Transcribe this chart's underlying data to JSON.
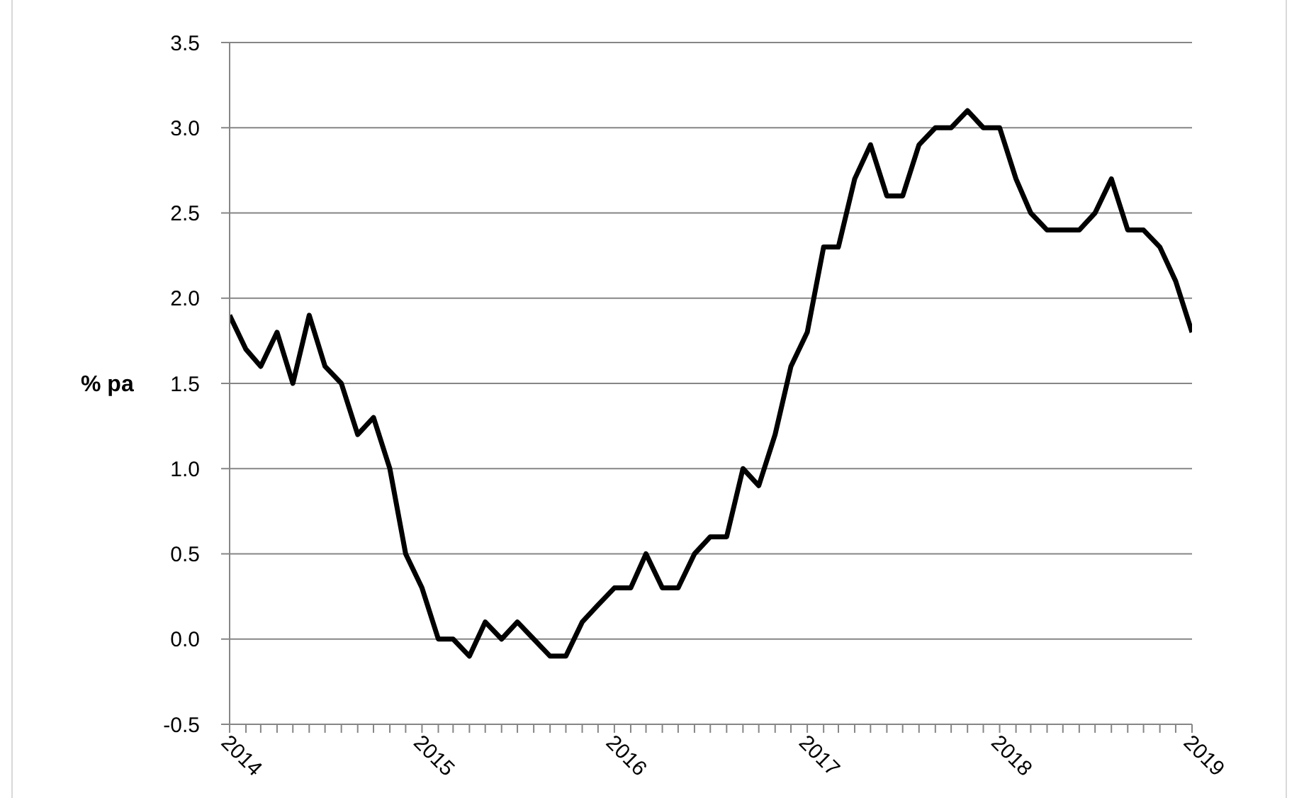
{
  "chart_data": {
    "type": "line",
    "ylabel": "% pa",
    "x": [
      "2014-01",
      "2014-02",
      "2014-03",
      "2014-04",
      "2014-05",
      "2014-06",
      "2014-07",
      "2014-08",
      "2014-09",
      "2014-10",
      "2014-11",
      "2014-12",
      "2015-01",
      "2015-02",
      "2015-03",
      "2015-04",
      "2015-05",
      "2015-06",
      "2015-07",
      "2015-08",
      "2015-09",
      "2015-10",
      "2015-11",
      "2015-12",
      "2016-01",
      "2016-02",
      "2016-03",
      "2016-04",
      "2016-05",
      "2016-06",
      "2016-07",
      "2016-08",
      "2016-09",
      "2016-10",
      "2016-11",
      "2016-12",
      "2017-01",
      "2017-02",
      "2017-03",
      "2017-04",
      "2017-05",
      "2017-06",
      "2017-07",
      "2017-08",
      "2017-09",
      "2017-10",
      "2017-11",
      "2017-12",
      "2018-01",
      "2018-02",
      "2018-03",
      "2018-04",
      "2018-05",
      "2018-06",
      "2018-07",
      "2018-08",
      "2018-09",
      "2018-10",
      "2018-11",
      "2018-12",
      "2019-01"
    ],
    "values": [
      1.9,
      1.7,
      1.6,
      1.8,
      1.5,
      1.9,
      1.6,
      1.5,
      1.2,
      1.3,
      1.0,
      0.5,
      0.3,
      0.0,
      0.0,
      -0.1,
      0.1,
      0.0,
      0.1,
      0.0,
      -0.1,
      -0.1,
      0.1,
      0.2,
      0.3,
      0.3,
      0.5,
      0.3,
      0.3,
      0.5,
      0.6,
      0.6,
      1.0,
      0.9,
      1.2,
      1.6,
      1.8,
      2.3,
      2.3,
      2.7,
      2.9,
      2.6,
      2.6,
      2.9,
      3.0,
      3.0,
      3.1,
      3.0,
      3.0,
      2.7,
      2.5,
      2.4,
      2.4,
      2.4,
      2.5,
      2.7,
      2.4,
      2.4,
      2.3,
      2.1,
      1.8
    ],
    "color": "#000000",
    "xlim": [
      "2014-01",
      "2019-01"
    ],
    "xticks": [
      "2014",
      {
        "value": "2014-02",
        "label": null
      },
      {
        "value": "2014-03",
        "label": null
      },
      {
        "value": "2014-04",
        "label": null
      },
      {
        "value": "2014-05",
        "label": null
      },
      {
        "value": "2014-06",
        "label": null
      },
      {
        "value": "2014-07",
        "label": null
      },
      {
        "value": "2014-08",
        "label": null
      },
      {
        "value": "2014-09",
        "label": null
      },
      {
        "value": "2014-10",
        "label": null
      },
      {
        "value": "2014-11",
        "label": null
      },
      {
        "value": "2014-12",
        "label": null
      },
      "2015",
      {
        "value": "2015-02",
        "label": null
      },
      {
        "value": "2015-03",
        "label": null
      },
      {
        "value": "2015-04",
        "label": null
      },
      {
        "value": "2015-05",
        "label": null
      },
      {
        "value": "2015-06",
        "label": null
      },
      {
        "value": "2015-07",
        "label": null
      },
      {
        "value": "2015-08",
        "label": null
      },
      {
        "value": "2015-09",
        "label": null
      },
      {
        "value": "2015-10",
        "label": null
      },
      {
        "value": "2015-11",
        "label": null
      },
      {
        "value": "2015-12",
        "label": null
      },
      "2016",
      {
        "value": "2016-02",
        "label": null
      },
      {
        "value": "2016-03",
        "label": null
      },
      {
        "value": "2016-04",
        "label": null
      },
      {
        "value": "2016-05",
        "label": null
      },
      {
        "value": "2016-06",
        "label": null
      },
      {
        "value": "2016-07",
        "label": null
      },
      {
        "value": "2016-08",
        "label": null
      },
      {
        "value": "2016-09",
        "label": null
      },
      {
        "value": "2016-10",
        "label": null
      },
      {
        "value": "2016-11",
        "label": null
      },
      {
        "value": "2016-12",
        "label": null
      },
      "2017",
      {
        "value": "2017-02",
        "label": null
      },
      {
        "value": "2017-03",
        "label": null
      },
      {
        "value": "2017-04",
        "label": null
      },
      {
        "value": "2017-05",
        "label": null
      },
      {
        "value": "2017-06",
        "label": null
      },
      {
        "value": "2017-07",
        "label": null
      },
      {
        "value": "2017-08",
        "label": null
      },
      {
        "value": "2017-09",
        "label": null
      },
      {
        "value": "2017-10",
        "label": null
      },
      {
        "value": "2017-11",
        "label": null
      },
      {
        "value": "2017-12",
        "label": null
      },
      "2018",
      {
        "value": "2018-02",
        "label": null
      },
      {
        "value": "2018-03",
        "label": null
      },
      {
        "value": "2018-04",
        "label": null
      },
      {
        "value": "2018-05",
        "label": null
      },
      {
        "value": "2018-06",
        "label": null
      },
      {
        "value": "2018-07",
        "label": null
      },
      {
        "value": "2018-08",
        "label": null
      },
      {
        "value": "2018-09",
        "label": null
      },
      {
        "value": "2018-10",
        "label": null
      },
      {
        "value": "2018-11",
        "label": null
      },
      {
        "value": "2018-12",
        "label": null
      },
      "2019"
    ],
    "ylim": [
      -0.5,
      3.5
    ],
    "yticks": [
      -0.5,
      {
        "value": 0,
        "label": "0.0"
      },
      0.5,
      {
        "value": 1,
        "label": "1.0"
      },
      1.5,
      {
        "value": 2,
        "label": "2.0"
      },
      2.5,
      {
        "value": 3,
        "label": "3.0"
      },
      3.5
    ],
    "grid": "y"
  }
}
